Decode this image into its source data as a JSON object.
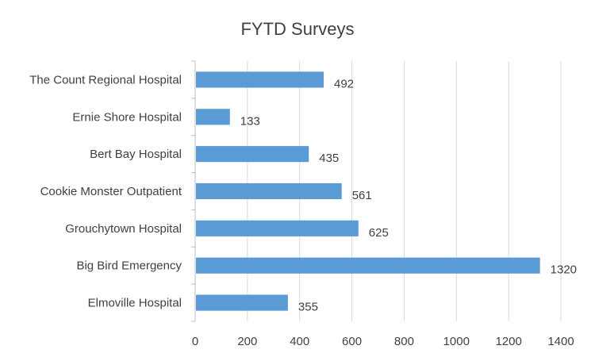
{
  "chart_data": {
    "type": "bar",
    "orientation": "horizontal",
    "title": "FYTD Surveys",
    "xlabel": "",
    "ylabel": "",
    "categories": [
      "The Count Regional Hospital",
      "Ernie Shore Hospital",
      "Bert Bay Hospital",
      "Cookie Monster Outpatient",
      "Grouchytown Hospital",
      "Big Bird Emergency",
      "Elmoville Hospital"
    ],
    "values": [
      492,
      133,
      435,
      561,
      625,
      1320,
      355
    ],
    "xlim": [
      0,
      1400
    ],
    "xticks": [
      0,
      200,
      400,
      600,
      800,
      1000,
      1200,
      1400
    ],
    "grid": true,
    "legend": "none",
    "colors": {
      "bar": "#5b9bd5",
      "grid": "#d9d9d9",
      "text": "#404040"
    }
  }
}
